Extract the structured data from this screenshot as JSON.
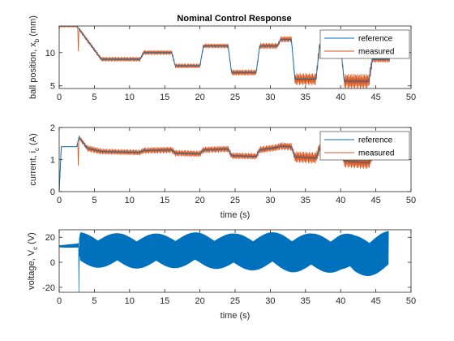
{
  "figure_title": "Nominal Control Response",
  "colors": {
    "reference": "#0072BD",
    "measured": "#D95319",
    "axis": "#262626",
    "voltage": "#0072BD"
  },
  "chart_data": [
    {
      "type": "line",
      "title": "Nominal Control Response",
      "xlabel": "",
      "ylabel_main": "ball position, x",
      "ylabel_sub": "b",
      "ylabel_unit": " (mm)",
      "xlim": [
        0,
        50
      ],
      "ylim": [
        4.6,
        14
      ],
      "xticks": [
        "0",
        "5",
        "10",
        "15",
        "20",
        "25",
        "30",
        "35",
        "40",
        "45",
        "50"
      ],
      "yticks": [
        {
          "v": 5,
          "t": "5"
        },
        {
          "v": 10,
          "t": "10"
        }
      ],
      "legend": [
        "reference",
        "measured"
      ],
      "legend_position": "top-right",
      "series": [
        {
          "name": "reference",
          "x": [
            0,
            2.5,
            6,
            11.5,
            12,
            16,
            16.5,
            20,
            20.5,
            24,
            24.5,
            28,
            28.5,
            31,
            31.5,
            33,
            33.5,
            36.5,
            37,
            40,
            40.5,
            44,
            44.5,
            47
          ],
          "y": [
            14,
            14,
            9,
            9,
            10,
            10,
            8,
            8,
            11,
            11,
            7,
            7,
            11,
            11,
            12,
            12,
            6,
            6,
            11,
            11,
            5.7,
            5.7,
            9,
            9
          ]
        },
        {
          "name": "measured",
          "x": [
            0,
            2.5,
            6,
            11.5,
            12,
            16,
            16.5,
            20,
            20.5,
            24,
            24.5,
            28,
            28.5,
            31,
            31.5,
            33,
            33.5,
            36.5,
            37,
            40,
            40.5,
            44,
            44.5,
            47
          ],
          "y": [
            14,
            14,
            9,
            9,
            10,
            10,
            8,
            8,
            11,
            11,
            7,
            7,
            11,
            11,
            12,
            12,
            6,
            6,
            11,
            11,
            5.7,
            5.7,
            9,
            9
          ],
          "oscillation": [
            0.15,
            0.3,
            0.35,
            0.3,
            0.35,
            0.3,
            0.35,
            0.3,
            0.35,
            0.3,
            0.45,
            0.35,
            0.45,
            0.35,
            0.45,
            0.4,
            0.9,
            0.9,
            0.55,
            0.5,
            1.1,
            1.1,
            0.5,
            0.45
          ],
          "spike": {
            "x": 2.7,
            "y": 10.2
          }
        }
      ]
    },
    {
      "type": "line",
      "xlabel": "time (s)",
      "ylabel_main": "current, i",
      "ylabel_sub": "c",
      "ylabel_unit": " (A)",
      "xlim": [
        0,
        50
      ],
      "ylim": [
        0,
        2
      ],
      "xticks": [
        "0",
        "5",
        "10",
        "15",
        "20",
        "25",
        "30",
        "35",
        "40",
        "45",
        "50"
      ],
      "yticks": [
        {
          "v": 0,
          "t": "0"
        },
        {
          "v": 1,
          "t": "1"
        },
        {
          "v": 2,
          "t": "2"
        }
      ],
      "legend": [
        "reference",
        "measured"
      ],
      "legend_position": "top-right",
      "series": [
        {
          "name": "reference",
          "x": [
            0,
            0.3,
            2.5,
            2.8,
            4,
            6,
            11.5,
            12,
            16,
            16.5,
            20,
            20.5,
            24,
            24.5,
            28,
            28.5,
            31,
            31.5,
            33,
            33.5,
            36.5,
            37,
            40,
            40.5,
            44,
            44.5,
            45
          ],
          "y": [
            0,
            1.4,
            1.4,
            1.7,
            1.35,
            1.25,
            1.22,
            1.28,
            1.3,
            1.2,
            1.18,
            1.3,
            1.33,
            1.12,
            1.1,
            1.3,
            1.38,
            1.42,
            1.4,
            1.08,
            1.05,
            1.35,
            1.3,
            0.95,
            0.9,
            1.15,
            1.1
          ]
        },
        {
          "name": "measured",
          "x": [
            0,
            0.3,
            2.5,
            2.8,
            4,
            6,
            11.5,
            12,
            16,
            16.5,
            20,
            20.5,
            24,
            24.5,
            28,
            28.5,
            31,
            31.5,
            33,
            33.5,
            36.5,
            37,
            40,
            40.5,
            44,
            44.5,
            45
          ],
          "y": [
            0,
            1.4,
            1.4,
            1.7,
            1.35,
            1.25,
            1.22,
            1.28,
            1.3,
            1.2,
            1.18,
            1.3,
            1.33,
            1.12,
            1.1,
            1.3,
            1.38,
            1.42,
            1.4,
            1.08,
            1.05,
            1.35,
            1.3,
            0.95,
            0.9,
            1.15,
            1.1
          ],
          "oscillation": [
            0,
            0,
            0.03,
            0.08,
            0.1,
            0.09,
            0.09,
            0.1,
            0.1,
            0.1,
            0.1,
            0.1,
            0.1,
            0.1,
            0.1,
            0.11,
            0.11,
            0.12,
            0.12,
            0.18,
            0.18,
            0.13,
            0.13,
            0.2,
            0.2,
            0.12,
            0.12
          ],
          "spike": {
            "x": 2.7,
            "y": 0.8
          }
        }
      ]
    },
    {
      "type": "line",
      "xlabel": "time (s)",
      "ylabel_main": "voltage, V",
      "ylabel_sub": "c",
      "ylabel_unit": " (V)",
      "xlim": [
        0,
        50
      ],
      "ylim": [
        -24,
        26
      ],
      "xticks": [
        "0",
        "5",
        "10",
        "15",
        "20",
        "25",
        "30",
        "35",
        "40",
        "45",
        "50"
      ],
      "yticks": [
        {
          "v": -20,
          "t": "-20"
        },
        {
          "v": 0,
          "t": "0"
        },
        {
          "v": 20,
          "t": "20"
        }
      ],
      "series": [
        {
          "name": "",
          "x": [
            0,
            2.7,
            3,
            10,
            15,
            20,
            25,
            30,
            33,
            36,
            40,
            42,
            44,
            46.8
          ],
          "center": [
            13,
            13,
            10,
            9,
            9,
            10,
            8,
            9,
            8,
            7,
            8,
            5,
            6,
            8
          ],
          "amplitude": [
            1,
            2,
            14,
            14,
            14,
            14,
            15,
            15,
            16,
            16,
            16,
            17,
            17,
            17
          ],
          "spike": {
            "x": 2.8,
            "y": -24
          }
        }
      ]
    }
  ]
}
